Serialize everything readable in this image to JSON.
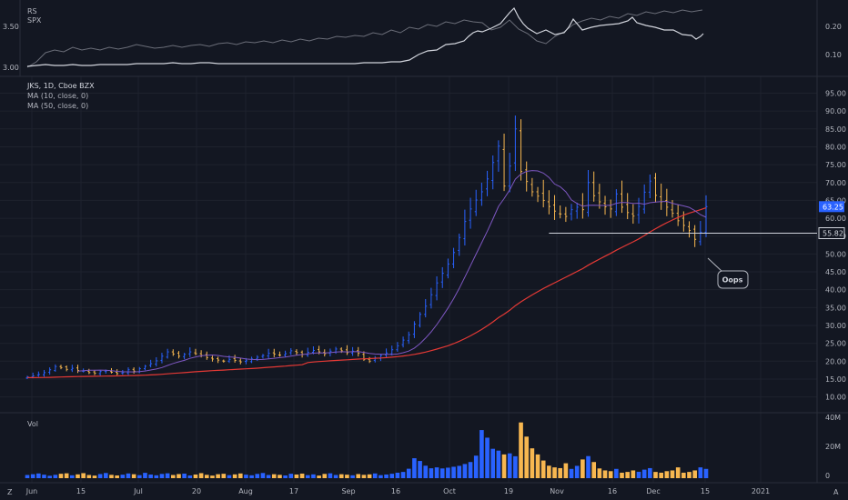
{
  "colors": {
    "background": "#131722",
    "grid": "#1e222d",
    "up": "#2962ff",
    "down": "#f7b750",
    "ma10": "#7e57c2",
    "ma50": "#e53935",
    "vol_up": "#2962ff",
    "vol_down": "#f7b750",
    "rs_line": "#d1d4dc",
    "spx_line": "#6a6d78",
    "price_tag": "#2962ff"
  },
  "rs_pane": {
    "labels": [
      "RS",
      "SPX"
    ],
    "left_ticks": [
      "3.50",
      "3.00"
    ],
    "right_ticks": [
      "0.20",
      "0.10"
    ]
  },
  "price_pane": {
    "legend": [
      "JKS, 1D, Cboe BZX",
      "MA (10, close, 0)",
      "MA (50, close, 0)"
    ],
    "y_ticks": [
      "95.00",
      "90.00",
      "85.00",
      "80.00",
      "75.00",
      "70.00",
      "65.00",
      "60.00",
      "55.00",
      "50.00",
      "45.00",
      "40.00",
      "35.00",
      "30.00",
      "25.00",
      "20.00",
      "15.00",
      "10.00"
    ],
    "last_price_tag": "63.25",
    "level_tag": "55.82",
    "annotation": "Oops"
  },
  "volume_pane": {
    "label": "Vol",
    "y_ticks": [
      "40M",
      "20M",
      "0"
    ]
  },
  "x_axis": {
    "ticks": [
      "Jun",
      "15",
      "Jul",
      "20",
      "Aug",
      "17",
      "Sep",
      "16",
      "Oct",
      "19",
      "Nov",
      "16",
      "Dec",
      "15",
      "2021"
    ]
  },
  "footer": {
    "left_icon": "Z",
    "right_icon": "A"
  },
  "chart_data": {
    "type": "candlestick",
    "symbol": "JKS",
    "interval": "1D",
    "exchange": "Cboe BZX",
    "ylim": [
      8,
      97
    ],
    "close": [
      15.6,
      15.9,
      16.3,
      16.8,
      17.6,
      18.5,
      18.2,
      17.7,
      18.0,
      17.4,
      17.2,
      16.8,
      16.6,
      17.1,
      17.3,
      16.9,
      16.5,
      16.8,
      17.6,
      17.2,
      17.9,
      18.6,
      19.3,
      20.1,
      21.4,
      22.6,
      22.0,
      21.4,
      21.9,
      22.6,
      22.1,
      21.6,
      21.0,
      20.6,
      20.3,
      20.0,
      20.5,
      20.2,
      19.8,
      20.1,
      20.6,
      21.1,
      21.6,
      22.2,
      22.0,
      21.7,
      22.1,
      22.9,
      22.4,
      21.9,
      22.5,
      23.0,
      22.6,
      22.1,
      22.8,
      23.4,
      22.9,
      22.4,
      22.8,
      22.2,
      20.5,
      20.0,
      20.9,
      21.6,
      22.3,
      23.2,
      24.3,
      25.9,
      27.4,
      30.4,
      33.1,
      35.4,
      38.6,
      41.9,
      44.6,
      47.2,
      50.4,
      54.6,
      59.1,
      62.6,
      65.1,
      67.4,
      71.0,
      75.6,
      80.2,
      69.0,
      74.6,
      85.0,
      73.1,
      70.3,
      67.4,
      66.2,
      65.0,
      63.3,
      62.0,
      61.2,
      60.5,
      62.4,
      63.1,
      62.4,
      70.0,
      66.3,
      64.6,
      63.2,
      62.6,
      66.8,
      63.1,
      61.6,
      60.6,
      63.3,
      67.3,
      70.4,
      66.4,
      64.6,
      63.1,
      61.4,
      59.3,
      58.0,
      56.6,
      54.1,
      56.1,
      63.25
    ],
    "ma10_first_index": 9,
    "ma50_first_index": 0,
    "volume_millions": [
      2.1,
      2.6,
      3.1,
      2.3,
      1.6,
      2.2,
      2.9,
      3.2,
      1.9,
      2.5,
      3.3,
      2.1,
      1.7,
      2.7,
      3.4,
      2.2,
      1.8,
      2.3,
      3.1,
      2.6,
      2.0,
      3.5,
      2.4,
      1.9,
      2.8,
      3.2,
      2.1,
      2.7,
      3.0,
      1.8,
      2.4,
      3.3,
      2.2,
      1.7,
      2.6,
      2.9,
      2.0,
      2.5,
      3.1,
      2.3,
      1.9,
      2.8,
      3.4,
      2.1,
      2.6,
      2.2,
      1.8,
      2.9,
      2.4,
      3.0,
      2.0,
      2.5,
      1.7,
      2.8,
      3.2,
      2.1,
      2.6,
      2.3,
      1.9,
      2.7,
      2.2,
      2.5,
      3.1,
      2.0,
      2.4,
      2.9,
      3.6,
      4.1,
      6.2,
      13.1,
      11.3,
      8.2,
      6.5,
      7.1,
      6.4,
      6.9,
      7.5,
      8.1,
      9.3,
      10.6,
      14.8,
      31.6,
      26.6,
      19.3,
      18.1,
      15.6,
      16.3,
      14.4,
      36.6,
      27.3,
      19.6,
      15.6,
      11.6,
      8.2,
      7.1,
      6.6,
      9.8,
      6.1,
      8.1,
      12.3,
      14.5,
      10.6,
      6.4,
      5.1,
      4.6,
      6.1,
      3.6,
      4.1,
      5.1,
      4.2,
      5.6,
      6.6,
      4.1,
      3.6,
      4.6,
      5.1,
      7.1,
      3.6,
      4.1,
      5.1,
      7.1,
      6.1
    ]
  }
}
